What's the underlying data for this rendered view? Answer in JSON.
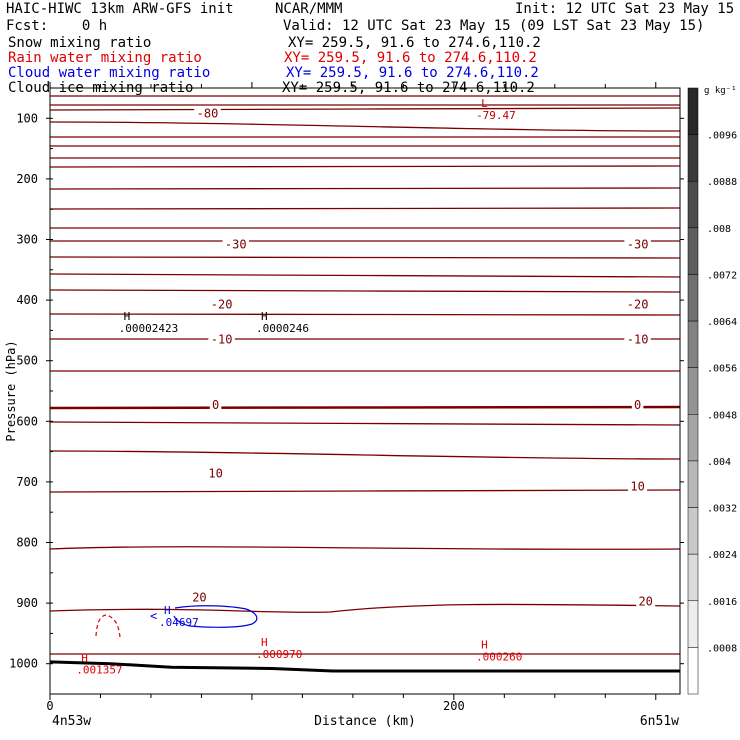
{
  "header": {
    "model": "HAIC-HIWC 13km ARW-GFS init",
    "org": "NCAR/MMM",
    "init": "Init: 12 UTC Sat 23 May 15",
    "fcst": "Fcst:    0 h",
    "valid": "Valid: 12 UTC Sat 23 May 15 (09 LST Sat 23 May 15)"
  },
  "fields": [
    {
      "name": "Snow mixing ratio",
      "xy": "XY= 259.5, 91.6 to 274.6,110.2",
      "color": "#000000"
    },
    {
      "name": "Rain water mixing ratio",
      "xy": "XY= 259.5, 91.6 to 274.6,110.2",
      "color": "#e00000"
    },
    {
      "name": "Cloud water mixing ratio",
      "xy": "XY= 259.5, 91.6 to 274.6,110.2",
      "color": "#0000e0"
    },
    {
      "name": "Cloud ice mixing ratio",
      "xy": "XY= 259.5, 91.6 to 274.6,110.2",
      "color": "#000000"
    }
  ],
  "chart_data": {
    "type": "contour cross-section",
    "xlabel": "Distance (km)",
    "ylabel": "Pressure (hPa)",
    "xlim": [
      0,
      312
    ],
    "ylim": [
      1050,
      50
    ],
    "x_ticks": [
      0,
      200
    ],
    "x_tick_labels": [
      "0",
      "200"
    ],
    "y_ticks": [
      100,
      200,
      300,
      400,
      500,
      600,
      700,
      800,
      900,
      1000
    ],
    "x_end_labels": {
      "left": "4n53w",
      "right": "6n51w"
    },
    "temperature_contours_color": "#7a0000",
    "temperature_labels": [
      {
        "text": "-80",
        "x": 78,
        "p": 92
      },
      {
        "text": "-30",
        "x": 92,
        "p": 308
      },
      {
        "text": "-30",
        "x": 291,
        "p": 308
      },
      {
        "text": "-20",
        "x": 85,
        "p": 407
      },
      {
        "text": "-20",
        "x": 291,
        "p": 407
      },
      {
        "text": "-10",
        "x": 85,
        "p": 465
      },
      {
        "text": "-10",
        "x": 291,
        "p": 465
      },
      {
        "text": "0",
        "x": 82,
        "p": 573
      },
      {
        "text": "0",
        "x": 291,
        "p": 573
      },
      {
        "text": "10",
        "x": 82,
        "p": 686
      },
      {
        "text": "10",
        "x": 291,
        "p": 708
      },
      {
        "text": "20",
        "x": 74,
        "p": 891
      },
      {
        "text": "20",
        "x": 295,
        "p": 897
      }
    ],
    "extrema": [
      {
        "type": "L",
        "value": "-79.47",
        "x": 212,
        "p": 81,
        "color": "#c00000"
      },
      {
        "type": "H",
        "value": ".00002423",
        "x": 35,
        "p": 433,
        "color": "#000000"
      },
      {
        "type": "H",
        "value": ".0000246",
        "x": 103,
        "p": 433,
        "color": "#000000"
      },
      {
        "type": "H",
        "value": ".04697",
        "x": 55,
        "p": 918,
        "color": "#0000e0"
      },
      {
        "type": "H",
        "value": ".001357",
        "x": 14,
        "p": 996,
        "color": "#e00000"
      },
      {
        "type": "H",
        "value": ".000970",
        "x": 103,
        "p": 971,
        "color": "#e00000"
      },
      {
        "type": "H",
        "value": ".000260",
        "x": 212,
        "p": 975,
        "color": "#e00000"
      }
    ],
    "colorbar": {
      "units": "g kg⁻¹",
      "labels": [
        ".0096",
        ".0088",
        ".008",
        ".0072",
        ".0064",
        ".0056",
        ".0048",
        ".004",
        ".0032",
        ".0024",
        ".0016",
        ".0008"
      ]
    },
    "terrain_pressure": [
      {
        "x": 0,
        "p": 997
      },
      {
        "x": 30,
        "p": 1000
      },
      {
        "x": 60,
        "p": 1006
      },
      {
        "x": 110,
        "p": 1008
      },
      {
        "x": 140,
        "p": 1012
      },
      {
        "x": 200,
        "p": 1012
      },
      {
        "x": 312,
        "p": 1012
      }
    ]
  }
}
